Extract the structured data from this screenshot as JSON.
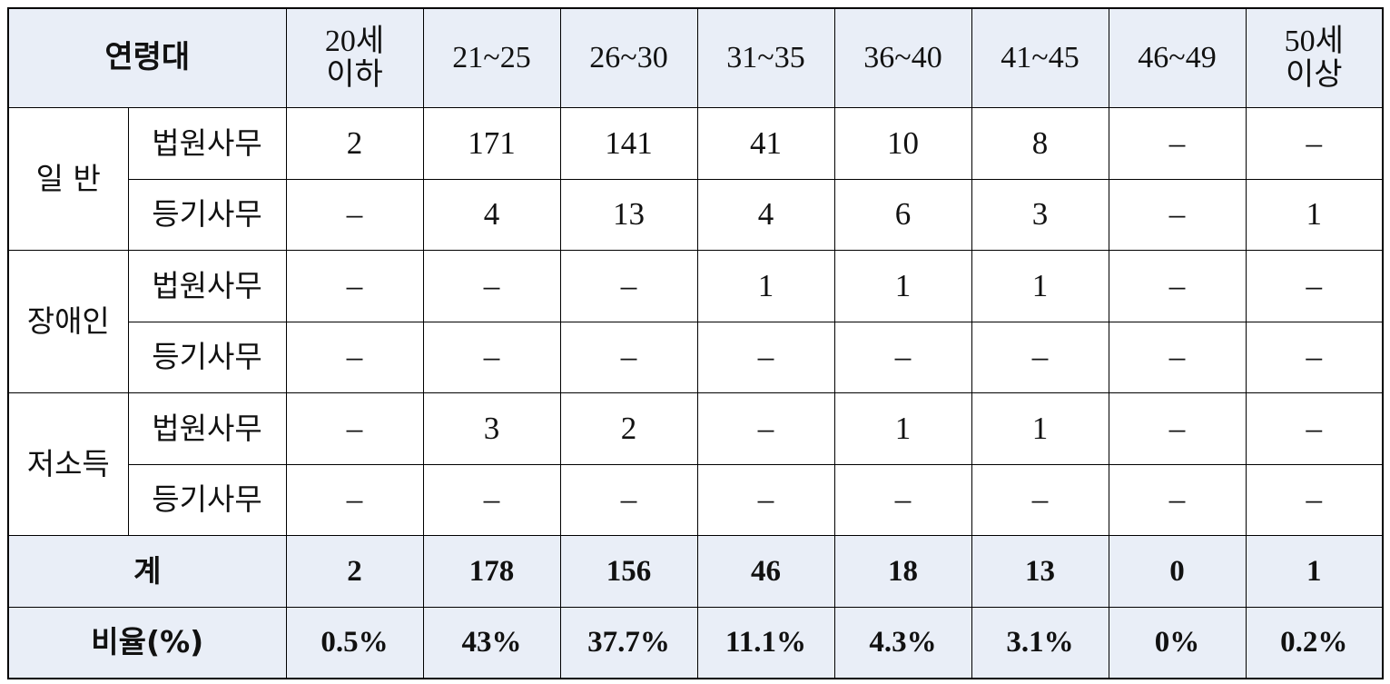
{
  "table": {
    "header": {
      "title": "연령대",
      "columns": [
        [
          "20세",
          "이하"
        ],
        "21~25",
        "26~30",
        "31~35",
        "36~40",
        "41~45",
        "46~49",
        [
          "50세",
          "이상"
        ]
      ]
    },
    "groups": [
      {
        "name": "일 반",
        "rows": [
          {
            "type": "법원사무",
            "values": [
              "2",
              "171",
              "141",
              "41",
              "10",
              "8",
              "–",
              "–"
            ]
          },
          {
            "type": "등기사무",
            "values": [
              "–",
              "4",
              "13",
              "4",
              "6",
              "3",
              "–",
              "1"
            ]
          }
        ]
      },
      {
        "name": "장애인",
        "rows": [
          {
            "type": "법원사무",
            "values": [
              "–",
              "–",
              "–",
              "1",
              "1",
              "1",
              "–",
              "–"
            ]
          },
          {
            "type": "등기사무",
            "values": [
              "–",
              "–",
              "–",
              "–",
              "–",
              "–",
              "–",
              "–"
            ]
          }
        ]
      },
      {
        "name": "저소득",
        "rows": [
          {
            "type": "법원사무",
            "values": [
              "–",
              "3",
              "2",
              "–",
              "1",
              "1",
              "–",
              "–"
            ]
          },
          {
            "type": "등기사무",
            "values": [
              "–",
              "–",
              "–",
              "–",
              "–",
              "–",
              "–",
              "–"
            ]
          }
        ]
      }
    ],
    "total": {
      "label": "계",
      "values": [
        "2",
        "178",
        "156",
        "46",
        "18",
        "13",
        "0",
        "1"
      ]
    },
    "ratio": {
      "label": "비율(%)",
      "values": [
        "0.5%",
        "43%",
        "37.7%",
        "11.1%",
        "4.3%",
        "3.1%",
        "0%",
        "0.2%"
      ]
    }
  }
}
